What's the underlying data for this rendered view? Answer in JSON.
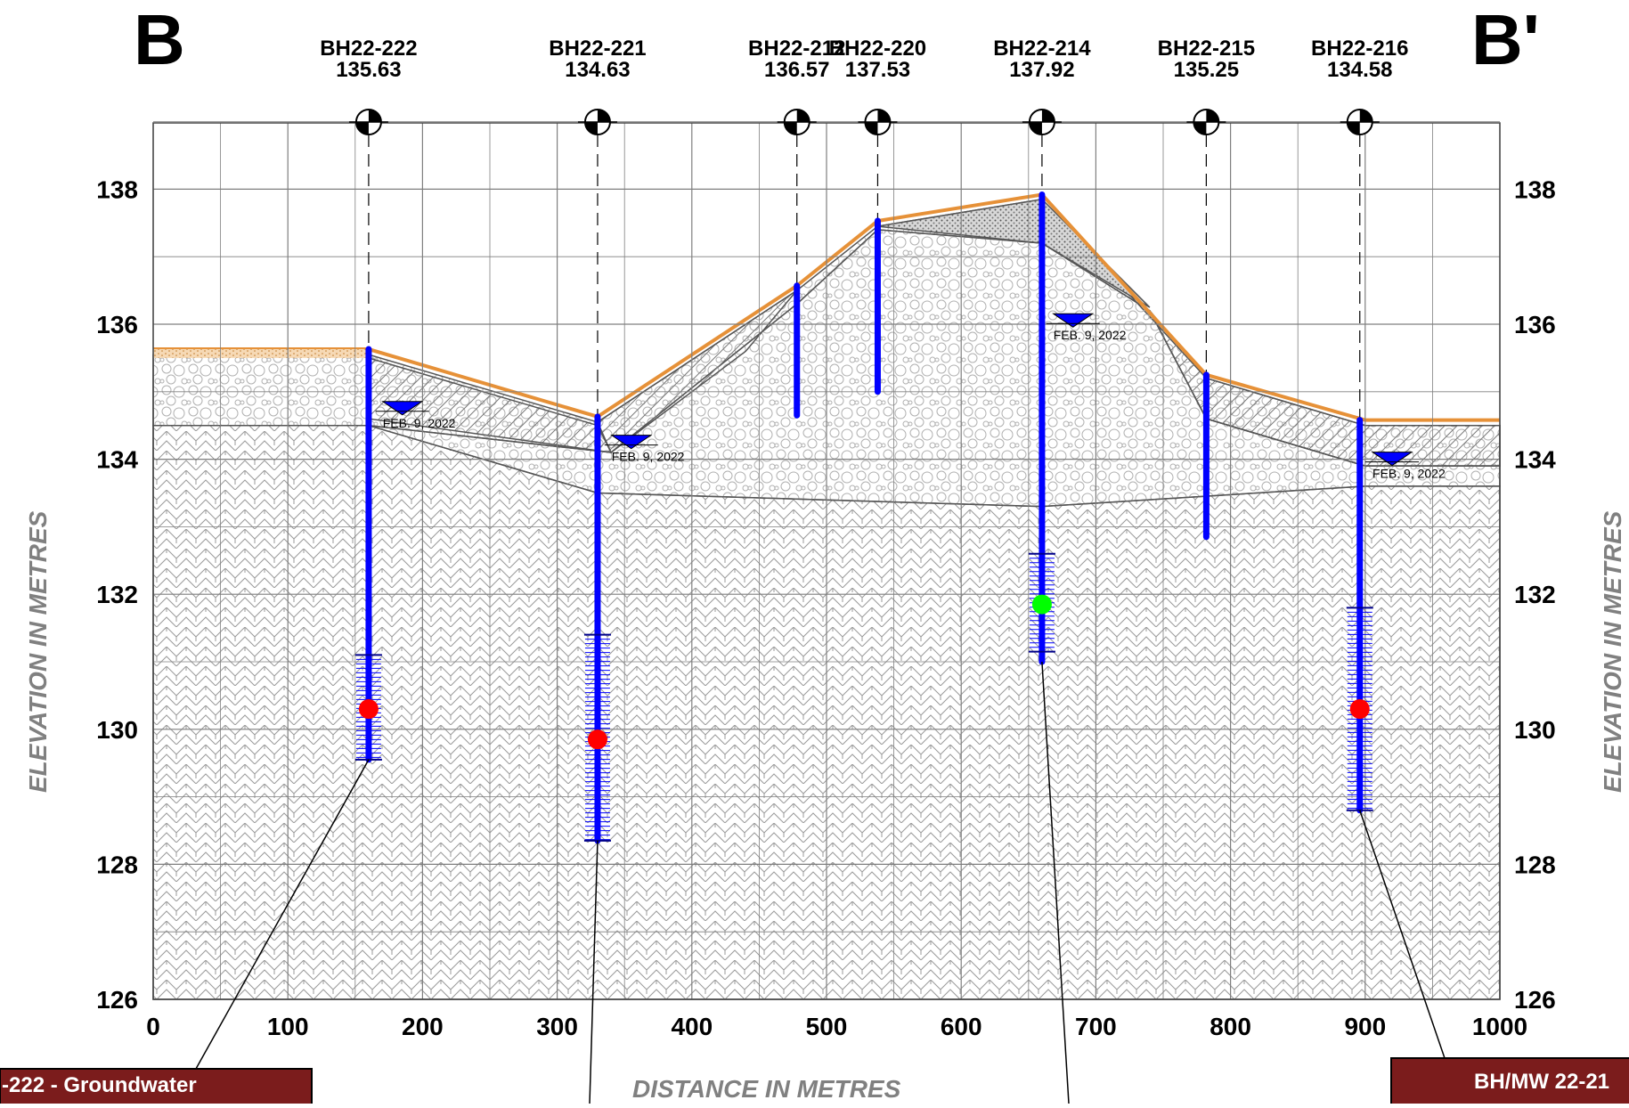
{
  "section": {
    "left_label": "B",
    "right_label": "B'"
  },
  "axes": {
    "x_label": "DISTANCE IN METRES",
    "y_label_left": "ELEVATION IN METRES",
    "y_label_right": "ELEVATION IN METRES",
    "x_ticks": [
      "0",
      "100",
      "200",
      "300",
      "400",
      "500",
      "600",
      "700",
      "800",
      "900",
      "1000"
    ],
    "y_ticks": [
      "126",
      "128",
      "130",
      "132",
      "134",
      "136",
      "138"
    ]
  },
  "boreholes": [
    {
      "name": "BH22-222",
      "elevation": "135.63"
    },
    {
      "name": "BH22-221",
      "elevation": "134.63"
    },
    {
      "name": "BH22-212",
      "elevation": "136.57"
    },
    {
      "name": "BH22-220",
      "elevation": "137.53"
    },
    {
      "name": "BH22-214",
      "elevation": "137.92"
    },
    {
      "name": "BH22-215",
      "elevation": "135.25"
    },
    {
      "name": "BH22-216",
      "elevation": "134.58"
    }
  ],
  "water_levels": [
    {
      "date": "FEB. 9, 2022"
    },
    {
      "date": "FEB. 9, 2022"
    },
    {
      "date": "FEB. 9, 2022"
    },
    {
      "date": "FEB. 9, 2022"
    }
  ],
  "callouts": {
    "left": "-222 - Groundwater",
    "right": "BH/MW 22-21"
  },
  "colors": {
    "borehole": "#0000ff",
    "topsoil": "#e69138",
    "sample_red": "#ff0000",
    "sample_green": "#00ff00",
    "water_table": "#0000ff",
    "callout_bg": "#7b1c1c",
    "grid": "#7f7f7f"
  }
}
